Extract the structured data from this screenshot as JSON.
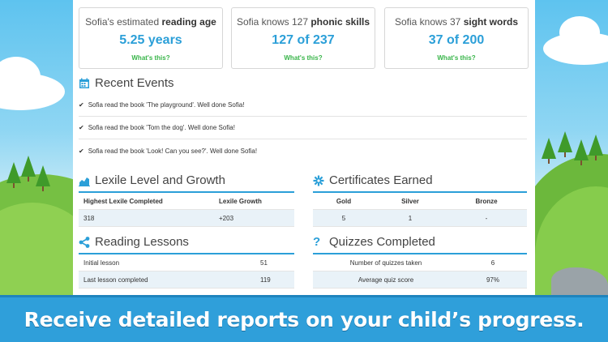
{
  "cards": [
    {
      "prefix": "Sofia's estimated ",
      "bold": "reading age",
      "value": "5.25 years",
      "link": "What's this?"
    },
    {
      "prefix": "Sofia knows 127 ",
      "bold": "phonic skills",
      "value": "127 of 237",
      "link": "What's this?"
    },
    {
      "prefix": "Sofia knows 37 ",
      "bold": "sight words",
      "value": "37 of 200",
      "link": "What's this?"
    }
  ],
  "recent_events": {
    "title": "Recent Events",
    "items": [
      "Sofia read the book 'The playground'. Well done Sofia!",
      "Sofia read the book 'Tom the dog'. Well done Sofia!",
      "Sofia read the book 'Look! Can you see?'. Well done Sofia!"
    ]
  },
  "lexile": {
    "title": "Lexile Level and Growth",
    "headers": [
      "Highest Lexile Completed",
      "Lexile Growth"
    ],
    "row": [
      "318",
      "+203"
    ]
  },
  "certificates": {
    "title": "Certificates Earned",
    "headers": [
      "Gold",
      "Silver",
      "Bronze"
    ],
    "row": [
      "5",
      "1",
      "-"
    ]
  },
  "reading_lessons": {
    "title": "Reading Lessons",
    "rows": [
      {
        "label": "Initial lesson",
        "value": "51"
      },
      {
        "label": "Last lesson completed",
        "value": "119"
      }
    ]
  },
  "quizzes": {
    "title": "Quizzes Completed",
    "rows": [
      {
        "label": "Number of quizzes taken",
        "value": "6"
      },
      {
        "label": "Average quiz score",
        "value": "97%"
      }
    ]
  },
  "banner": {
    "text": "Receive detailed reports on your child’s progress."
  },
  "colors": {
    "accent": "#2b9fd8",
    "link_green": "#39b54a",
    "banner": "#2f9fda"
  },
  "icons": [
    "calendar-icon",
    "chart-icon",
    "certificate-icon",
    "share-icon",
    "question-icon",
    "check-icon"
  ]
}
